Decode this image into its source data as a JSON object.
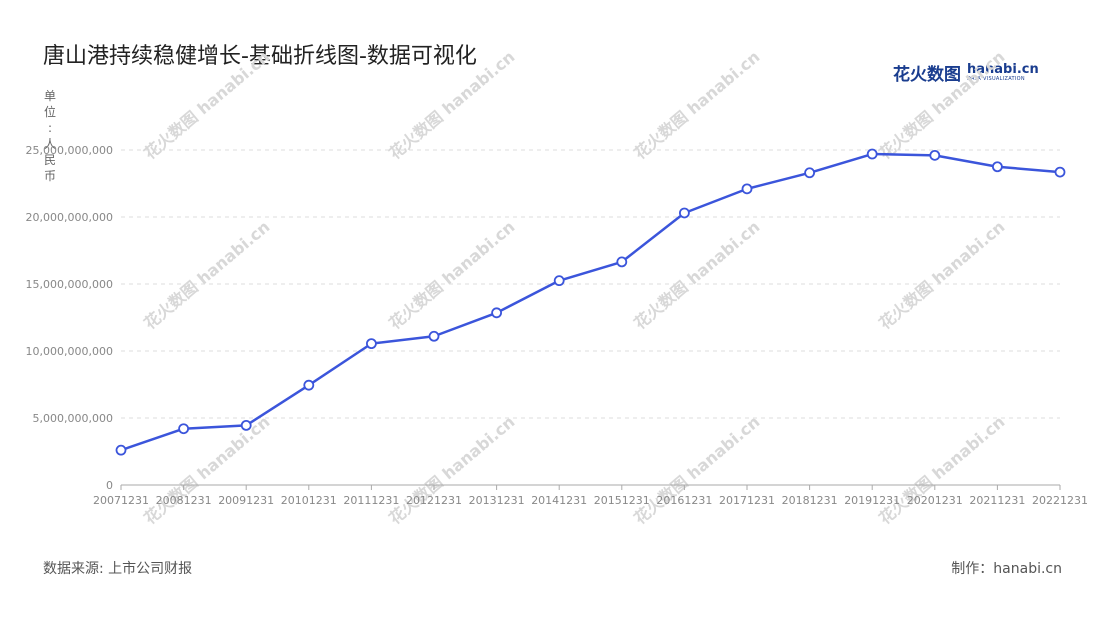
{
  "title": "唐山港持续稳健增长-基础折线图-数据可视化",
  "logo": {
    "cn": "花火数图",
    "en": "hanabi.cn",
    "sub": "DATA VISUALIZATION"
  },
  "unit_label": "单位：人民币",
  "source": "数据来源: 上市公司财报",
  "credit": "制作：hanabi.cn",
  "watermark": "花火数图 hanabi.cn",
  "colors": {
    "line": "#3b55db",
    "marker_fill": "#ffffff",
    "grid": "#dddddd",
    "axis": "#aaaaaa"
  },
  "chart_data": {
    "type": "line",
    "x": [
      "20071231",
      "20081231",
      "20091231",
      "20101231",
      "20111231",
      "20121231",
      "20131231",
      "20141231",
      "20151231",
      "20161231",
      "20171231",
      "20181231",
      "20191231",
      "20201231",
      "20211231",
      "20221231"
    ],
    "values": [
      2600000000,
      4200000000,
      4450000000,
      7450000000,
      10550000000,
      11100000000,
      12850000000,
      15250000000,
      16650000000,
      20300000000,
      22100000000,
      23300000000,
      24700000000,
      24600000000,
      23750000000,
      23350000000
    ],
    "y_ticks": [
      "0",
      "5,000,000,000",
      "10,000,000,000",
      "15,000,000,000",
      "20,000,000,000",
      "25,000,000,000"
    ],
    "ylim": [
      0,
      25000000000
    ],
    "grid": true,
    "legend": "none"
  }
}
